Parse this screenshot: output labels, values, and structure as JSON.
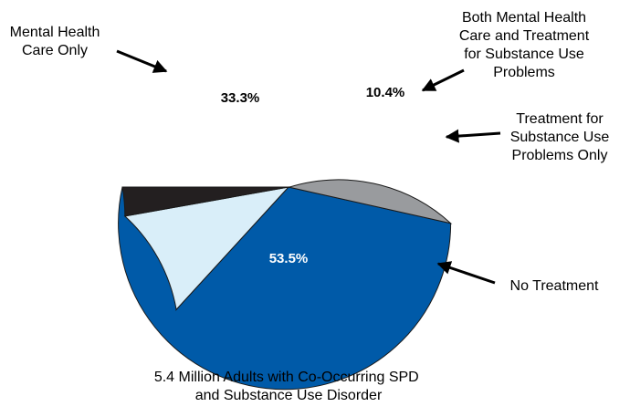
{
  "chart_data": {
    "type": "pie",
    "caption_lines": [
      "5.4 Million Adults with Co-Occurring SPD",
      "and Substance Use Disorder"
    ],
    "slices": [
      {
        "label_lines": [
          "No Treatment"
        ],
        "value": 53.5,
        "value_label": "53.5%",
        "color": "#005aa8",
        "text_color": "#ffffff"
      },
      {
        "label_lines": [
          "Mental Health",
          "Care Only"
        ],
        "value": 33.3,
        "value_label": "33.3%",
        "color": "#999b9e",
        "text_color": "#000000"
      },
      {
        "label_lines": [
          "Both Mental Health",
          "Care and Treatment",
          "for Substance Use",
          "Problems"
        ],
        "value": 10.4,
        "value_label": "10.4%",
        "color": "#d9eef9",
        "text_color": "#000000"
      },
      {
        "label_lines": [
          "Treatment for",
          "Substance Use",
          "Problems Only"
        ],
        "value": 2.8,
        "value_label": "2.8%",
        "color": "#231f20",
        "text_color": "#ffffff"
      }
    ]
  }
}
